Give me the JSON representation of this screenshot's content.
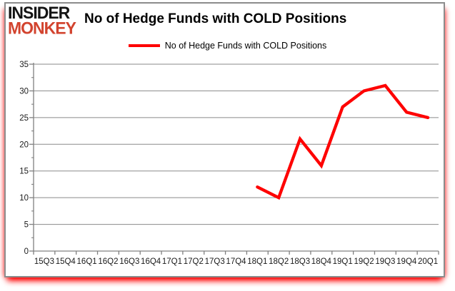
{
  "logo": {
    "line1": "INSIDER",
    "line2": "MONKEY"
  },
  "header": {
    "title": "No of Hedge Funds with COLD Positions"
  },
  "legend": {
    "label": "No of Hedge Funds with COLD Positions"
  },
  "colors": {
    "series_line": "#fe0000",
    "logo_black": "#141414",
    "logo_red": "#d2432e",
    "gridline": "#8a8a8a",
    "axis": "#808080",
    "label_text": "#1a1a1a",
    "title_text": "#000000"
  },
  "chart_data": {
    "type": "line",
    "title": "No of Hedge Funds with COLD Positions",
    "categories": [
      "15Q3",
      "15Q4",
      "16Q1",
      "16Q2",
      "16Q3",
      "16Q4",
      "17Q1",
      "17Q2",
      "17Q3",
      "17Q4",
      "18Q1",
      "18Q2",
      "18Q3",
      "18Q4",
      "19Q1",
      "19Q2",
      "19Q3",
      "19Q4",
      "20Q1"
    ],
    "series": [
      {
        "name": "No of Hedge Funds with COLD Positions",
        "color": "#fe0000",
        "values": [
          null,
          null,
          null,
          null,
          null,
          null,
          null,
          null,
          null,
          null,
          12,
          10,
          21,
          16,
          27,
          30,
          31,
          26,
          25
        ]
      }
    ],
    "xlabel": "",
    "ylabel": "",
    "ylim": [
      0,
      35
    ],
    "yticks": [
      0,
      5,
      10,
      15,
      20,
      25,
      30,
      35
    ],
    "ytick_minor_interval": 2.5,
    "grid": true,
    "legend_position": "top-center"
  }
}
